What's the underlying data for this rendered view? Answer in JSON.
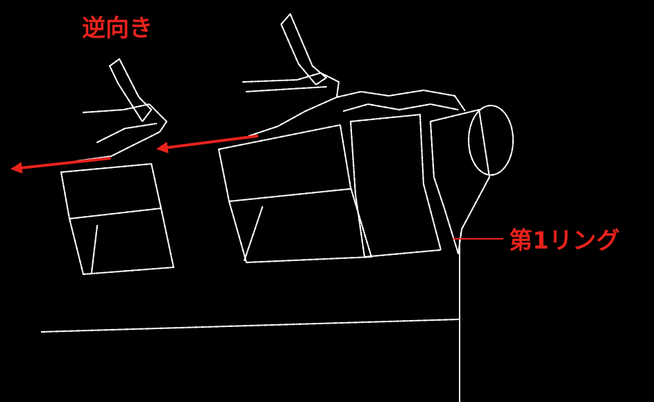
{
  "labels": {
    "reverse": "逆向き",
    "first_ring": "第1リング"
  },
  "colors": {
    "background": "#000000",
    "line_art": "#ffffff",
    "annotation": "#e8221c"
  }
}
